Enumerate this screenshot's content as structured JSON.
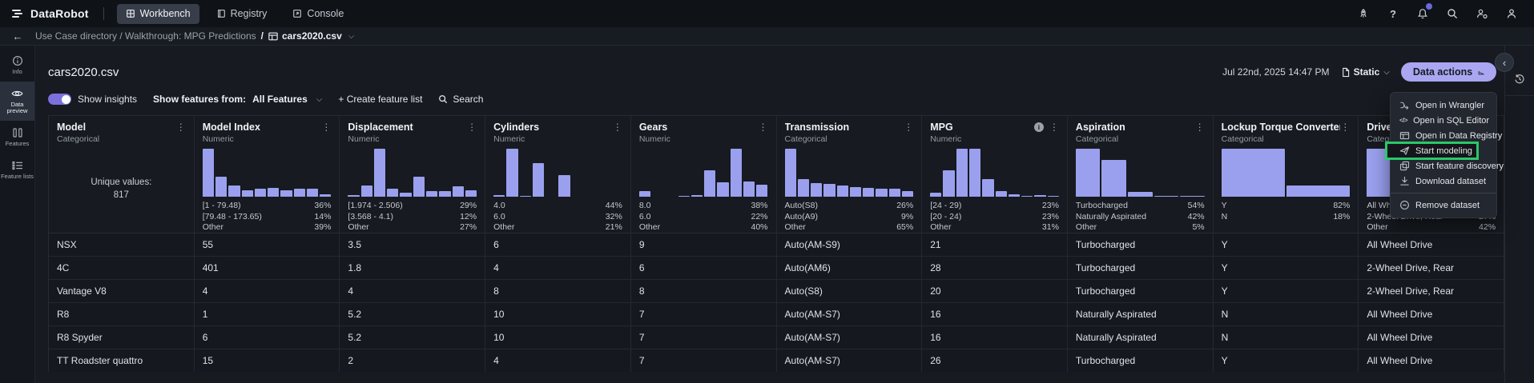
{
  "topnav": {
    "brand": "DataRobot",
    "tabs": [
      {
        "label": "Workbench",
        "active": true
      },
      {
        "label": "Registry",
        "active": false
      },
      {
        "label": "Console",
        "active": false
      }
    ]
  },
  "breadcrumb": {
    "path": "Use Case directory / Walkthrough: MPG Predictions",
    "separator": "/",
    "current": "cars2020.csv"
  },
  "sidebar": {
    "items": [
      {
        "label": "Info",
        "active": false
      },
      {
        "label": "Data preview",
        "active": true
      },
      {
        "label": "Features",
        "active": false
      },
      {
        "label": "Feature lists",
        "active": false
      }
    ]
  },
  "header": {
    "title": "cars2020.csv",
    "timestamp": "Jul 22nd, 2025 14:47 PM",
    "snapshot_label": "Static",
    "data_actions_label": "Data actions"
  },
  "toolbar": {
    "show_insights_label": "Show insights",
    "show_features_label": "Show features from:",
    "features_filter_value": "All Features",
    "create_feature_list_label": "+ Create feature list",
    "search_label": "Search"
  },
  "menu": {
    "items": [
      "Open in Wrangler",
      "Open in SQL Editor",
      "Open in Data Registry",
      "Start modeling",
      "Start feature discovery",
      "Download dataset",
      "Remove dataset"
    ],
    "highlighted_item": "Start modeling"
  },
  "table": {
    "columns": [
      {
        "name": "Model",
        "type": "Categorical",
        "unique_label": "Unique values:",
        "unique_value": "817"
      },
      {
        "name": "Model Index",
        "type": "Numeric",
        "hist": [
          100,
          41,
          24,
          14,
          16,
          18,
          14,
          16,
          17,
          5
        ],
        "stats": [
          {
            "label": "[1 - 79.48)",
            "pct": "36%"
          },
          {
            "label": "[79.48 - 173.65)",
            "pct": "14%"
          },
          {
            "label": "Other",
            "pct": "39%"
          }
        ]
      },
      {
        "name": "Displacement",
        "type": "Numeric",
        "hist": [
          4,
          24,
          100,
          16,
          9,
          41,
          12,
          11,
          21,
          13
        ],
        "stats": [
          {
            "label": "[1.974 - 2.506)",
            "pct": "29%"
          },
          {
            "label": "[3.568 - 4.1)",
            "pct": "12%"
          },
          {
            "label": "Other",
            "pct": "27%"
          }
        ]
      },
      {
        "name": "Cylinders",
        "type": "Numeric",
        "hist": [
          4,
          100,
          2,
          70,
          0,
          45,
          0,
          0,
          0,
          0
        ],
        "stats": [
          {
            "label": "4.0",
            "pct": "44%"
          },
          {
            "label": "6.0",
            "pct": "32%"
          },
          {
            "label": "Other",
            "pct": "21%"
          }
        ]
      },
      {
        "name": "Gears",
        "type": "Numeric",
        "hist": [
          12,
          0,
          0,
          2,
          3,
          55,
          30,
          100,
          32,
          25
        ],
        "stats": [
          {
            "label": "8.0",
            "pct": "38%"
          },
          {
            "label": "6.0",
            "pct": "22%"
          },
          {
            "label": "Other",
            "pct": "40%"
          }
        ]
      },
      {
        "name": "Transmission",
        "type": "Categorical",
        "hist": [
          100,
          37,
          28,
          27,
          24,
          20,
          19,
          17,
          16,
          11
        ],
        "stats": [
          {
            "label": "Auto(S8)",
            "pct": "26%"
          },
          {
            "label": "Auto(A9)",
            "pct": "9%"
          },
          {
            "label": "Other",
            "pct": "65%"
          }
        ]
      },
      {
        "name": "MPG",
        "type": "Numeric",
        "info": true,
        "hist": [
          8,
          55,
          100,
          100,
          37,
          11,
          5,
          2,
          4,
          1
        ],
        "stats": [
          {
            "label": "[24 - 29)",
            "pct": "23%"
          },
          {
            "label": "[20 - 24)",
            "pct": "23%"
          },
          {
            "label": "Other",
            "pct": "31%"
          }
        ]
      },
      {
        "name": "Aspiration",
        "type": "Categorical",
        "hist": [
          100,
          77,
          10,
          2,
          2
        ],
        "stats": [
          {
            "label": "Turbocharged",
            "pct": "54%"
          },
          {
            "label": "Naturally Aspirated",
            "pct": "42%"
          },
          {
            "label": "Other",
            "pct": "5%"
          }
        ]
      },
      {
        "name": "Lockup Torque Converter",
        "type": "Categorical",
        "hist": [
          100,
          23
        ],
        "stats": [
          {
            "label": "Y",
            "pct": "82%"
          },
          {
            "label": "N",
            "pct": "18%"
          }
        ]
      },
      {
        "name": "Drive",
        "type": "Categorical",
        "hist": [
          100,
          90,
          0,
          0
        ],
        "stats": [
          {
            "label": "All Wheel Drive",
            "pct": ""
          },
          {
            "label": "2-Wheel Drive, Rear",
            "pct": "27%"
          },
          {
            "label": "Other",
            "pct": "42%"
          }
        ]
      }
    ],
    "rows": [
      [
        "NSX",
        "55",
        "3.5",
        "6",
        "9",
        "Auto(AM-S9)",
        "21",
        "Turbocharged",
        "Y",
        "All Wheel Drive"
      ],
      [
        "4C",
        "401",
        "1.8",
        "4",
        "6",
        "Auto(AM6)",
        "28",
        "Turbocharged",
        "Y",
        "2-Wheel Drive, Rear"
      ],
      [
        "Vantage V8",
        "4",
        "4",
        "8",
        "8",
        "Auto(S8)",
        "20",
        "Turbocharged",
        "Y",
        "2-Wheel Drive, Rear"
      ],
      [
        "R8",
        "1",
        "5.2",
        "10",
        "7",
        "Auto(AM-S7)",
        "16",
        "Naturally Aspirated",
        "N",
        "All Wheel Drive"
      ],
      [
        "R8 Spyder",
        "6",
        "5.2",
        "10",
        "7",
        "Auto(AM-S7)",
        "16",
        "Naturally Aspirated",
        "N",
        "All Wheel Drive"
      ],
      [
        "TT Roadster quattro",
        "15",
        "2",
        "4",
        "7",
        "Auto(AM-S7)",
        "26",
        "Turbocharged",
        "Y",
        "All Wheel Drive"
      ]
    ]
  },
  "colors": {
    "accent_bar": "#9aa0ee",
    "primary_button": "#aaa6f1",
    "highlight_green": "#2bc76a",
    "toggle_on": "#7b71dd",
    "notification_badge": "#6c68dd"
  }
}
